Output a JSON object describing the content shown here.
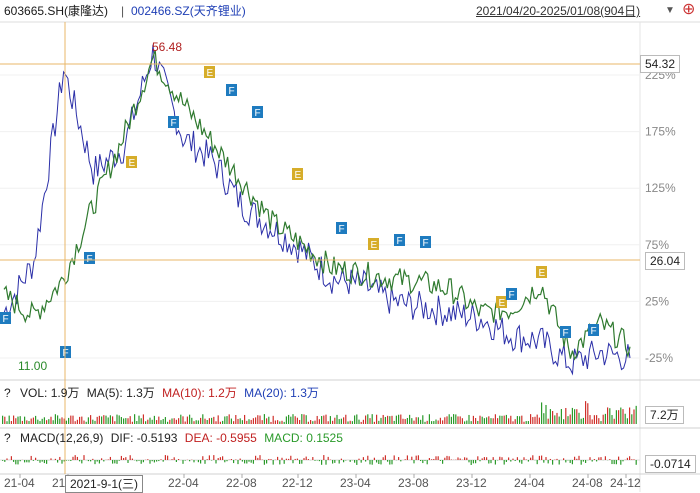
{
  "header": {
    "symbol_a": "603665.SH(康隆达)",
    "separator": "|",
    "symbol_b": "002466.SZ(天齐锂业)",
    "date_range": "2021/04/20-2025/01/08(904日)",
    "dropdown_icon": "caret-down-icon",
    "add_icon": "plus-icon"
  },
  "colors": {
    "line_a": "#2f7a2f",
    "line_b": "#2b2fa8",
    "up": "#d0302b",
    "down": "#2a9a2a",
    "crosshair": "#e8b76a",
    "marker_f": "#1e7bbf",
    "marker_e": "#d6ad2a"
  },
  "main": {
    "max_label": "56.48",
    "min_label": "11.00",
    "crosshair_price_label": "54.32",
    "h_line_price_label": "26.04",
    "marker_f": "F",
    "marker_e": "E"
  },
  "volume_panel": {
    "question": "?",
    "vol_label": "VOL: 1.9万",
    "ma5_label": "MA(5): 1.3万",
    "ma10_label": "MA(10): 1.2万",
    "ma20_label": "MA(20): 1.3万",
    "right_label": "7.2万"
  },
  "macd_panel": {
    "question": "?",
    "macd_params": "MACD(12,26,9)",
    "dif_label": "DIF: -0.5193",
    "dea_label": "DEA: -0.5955",
    "macd_label": "MACD: 0.1525",
    "right_label": "-0.0714"
  },
  "xaxis": {
    "crosshair_date": "2021-9-1(三)"
  },
  "chart_data": {
    "type": "line",
    "x_ticks": [
      "21-04",
      "21",
      "22-04",
      "22-08",
      "22-12",
      "23-04",
      "23-08",
      "23-12",
      "24-04",
      "24-08",
      "24-12"
    ],
    "y_ticks_pct": [
      "225%",
      "175%",
      "125%",
      "75%",
      "25%",
      "-25%"
    ],
    "series": [
      {
        "name": "603665.SH(康隆达)",
        "x": [
          "21-04",
          "21-06",
          "21-09",
          "21-11",
          "22-02",
          "22-04",
          "22-06",
          "22-08",
          "22-10",
          "22-12",
          "23-02",
          "23-04",
          "23-06",
          "23-08",
          "23-10",
          "23-12",
          "24-02",
          "24-04",
          "24-06",
          "24-08",
          "24-10",
          "24-12"
        ],
        "y": [
          30,
          12,
          45,
          110,
          170,
          240,
          200,
          165,
          130,
          95,
          75,
          55,
          50,
          45,
          42,
          35,
          15,
          18,
          40,
          -20,
          5,
          -15
        ]
      },
      {
        "name": "002466.SZ(天齐锂业)",
        "x": [
          "21-04",
          "21-06",
          "21-09",
          "21-11",
          "22-02",
          "22-04",
          "22-06",
          "22-08",
          "22-10",
          "22-12",
          "23-02",
          "23-04",
          "23-06",
          "23-08",
          "23-10",
          "23-12",
          "24-02",
          "24-04",
          "24-06",
          "24-08",
          "24-10",
          "24-12"
        ],
        "y": [
          15,
          60,
          230,
          140,
          160,
          245,
          170,
          150,
          110,
          90,
          70,
          45,
          40,
          25,
          20,
          15,
          10,
          -5,
          -10,
          -30,
          -20,
          -25
        ]
      }
    ]
  }
}
